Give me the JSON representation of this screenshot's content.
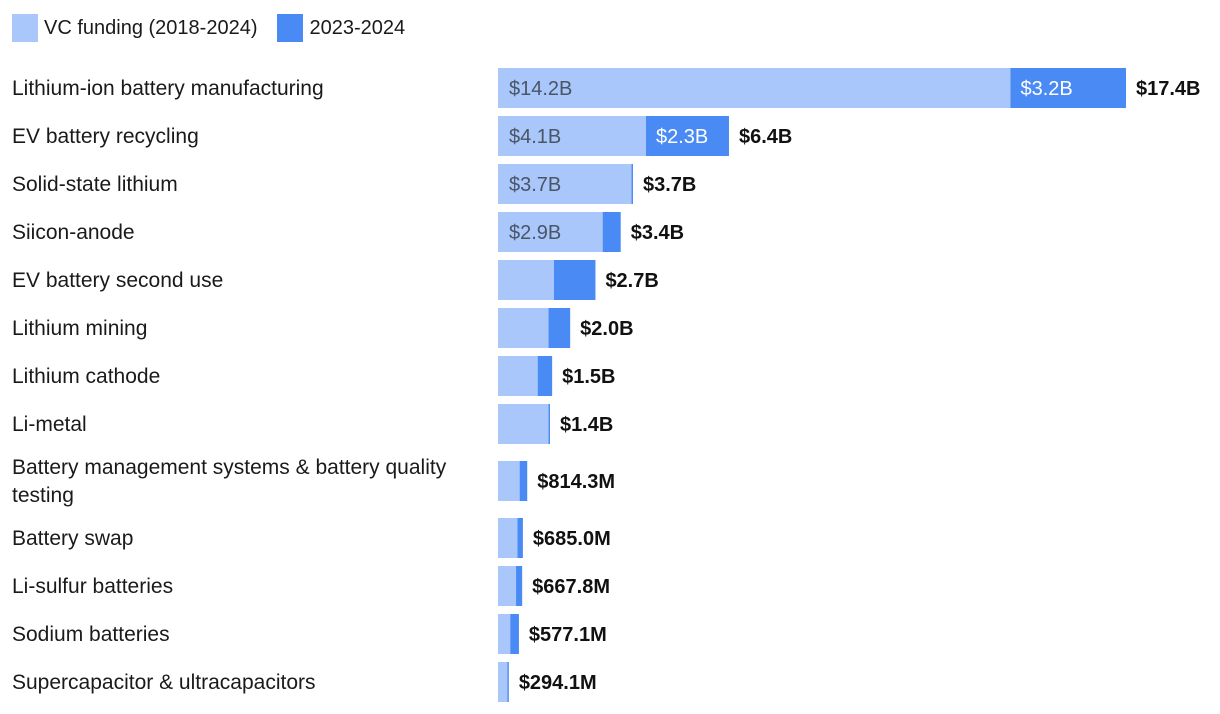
{
  "colors": {
    "base": "#a9c7fb",
    "recent": "#4a8af4",
    "base_text": "#4a5566",
    "recent_text": "#ffffff"
  },
  "legend": {
    "items": [
      {
        "label": "VC funding (2018-2024)",
        "color": "#a9c7fb"
      },
      {
        "label": "2023-2024",
        "color": "#4a8af4"
      }
    ]
  },
  "chart_data": {
    "type": "bar",
    "orientation": "horizontal",
    "stacked": true,
    "title": "",
    "xlabel": "",
    "ylabel": "",
    "xlim": [
      0,
      17.4
    ],
    "unit": "$B",
    "series": [
      {
        "name": "VC funding (2018-2024)",
        "values": [
          14.2,
          4.1,
          3.7,
          2.9,
          1.55,
          1.4,
          1.1,
          1.4,
          0.6,
          0.54,
          0.5,
          0.34,
          0.26
        ]
      },
      {
        "name": "2023-2024",
        "values": [
          3.2,
          2.3,
          0.04,
          0.5,
          1.15,
          0.6,
          0.4,
          0.04,
          0.21,
          0.15,
          0.17,
          0.24,
          0.04
        ]
      }
    ],
    "rows": [
      {
        "category": [
          "Lithium-ion battery manufacturing"
        ],
        "base_label": "$14.2B",
        "recent_label": "$3.2B",
        "total_label": "$17.4B"
      },
      {
        "category": [
          "EV battery recycling"
        ],
        "base_label": "$4.1B",
        "recent_label": "$2.3B",
        "total_label": "$6.4B"
      },
      {
        "category": [
          "Solid-state lithium"
        ],
        "base_label": "$3.7B",
        "recent_label": "",
        "total_label": "$3.7B"
      },
      {
        "category": [
          "Siicon-anode"
        ],
        "base_label": "$2.9B",
        "recent_label": "",
        "total_label": "$3.4B"
      },
      {
        "category": [
          "EV battery second use"
        ],
        "base_label": "",
        "recent_label": "",
        "total_label": "$2.7B"
      },
      {
        "category": [
          "Lithium mining"
        ],
        "base_label": "",
        "recent_label": "",
        "total_label": "$2.0B"
      },
      {
        "category": [
          "Lithium cathode"
        ],
        "base_label": "",
        "recent_label": "",
        "total_label": "$1.5B"
      },
      {
        "category": [
          "Li-metal"
        ],
        "base_label": "",
        "recent_label": "",
        "total_label": "$1.4B"
      },
      {
        "category": [
          "Battery management systems & battery quality",
          "testing"
        ],
        "base_label": "",
        "recent_label": "",
        "total_label": "$814.3M"
      },
      {
        "category": [
          "Battery swap"
        ],
        "base_label": "",
        "recent_label": "",
        "total_label": "$685.0M"
      },
      {
        "category": [
          "Li-sulfur batteries"
        ],
        "base_label": "",
        "recent_label": "",
        "total_label": "$667.8M"
      },
      {
        "category": [
          "Sodium batteries"
        ],
        "base_label": "",
        "recent_label": "",
        "total_label": "$577.1M"
      },
      {
        "category": [
          "Supercapacitor & ultracapacitors"
        ],
        "base_label": "",
        "recent_label": "",
        "total_label": "$294.1M"
      }
    ]
  }
}
